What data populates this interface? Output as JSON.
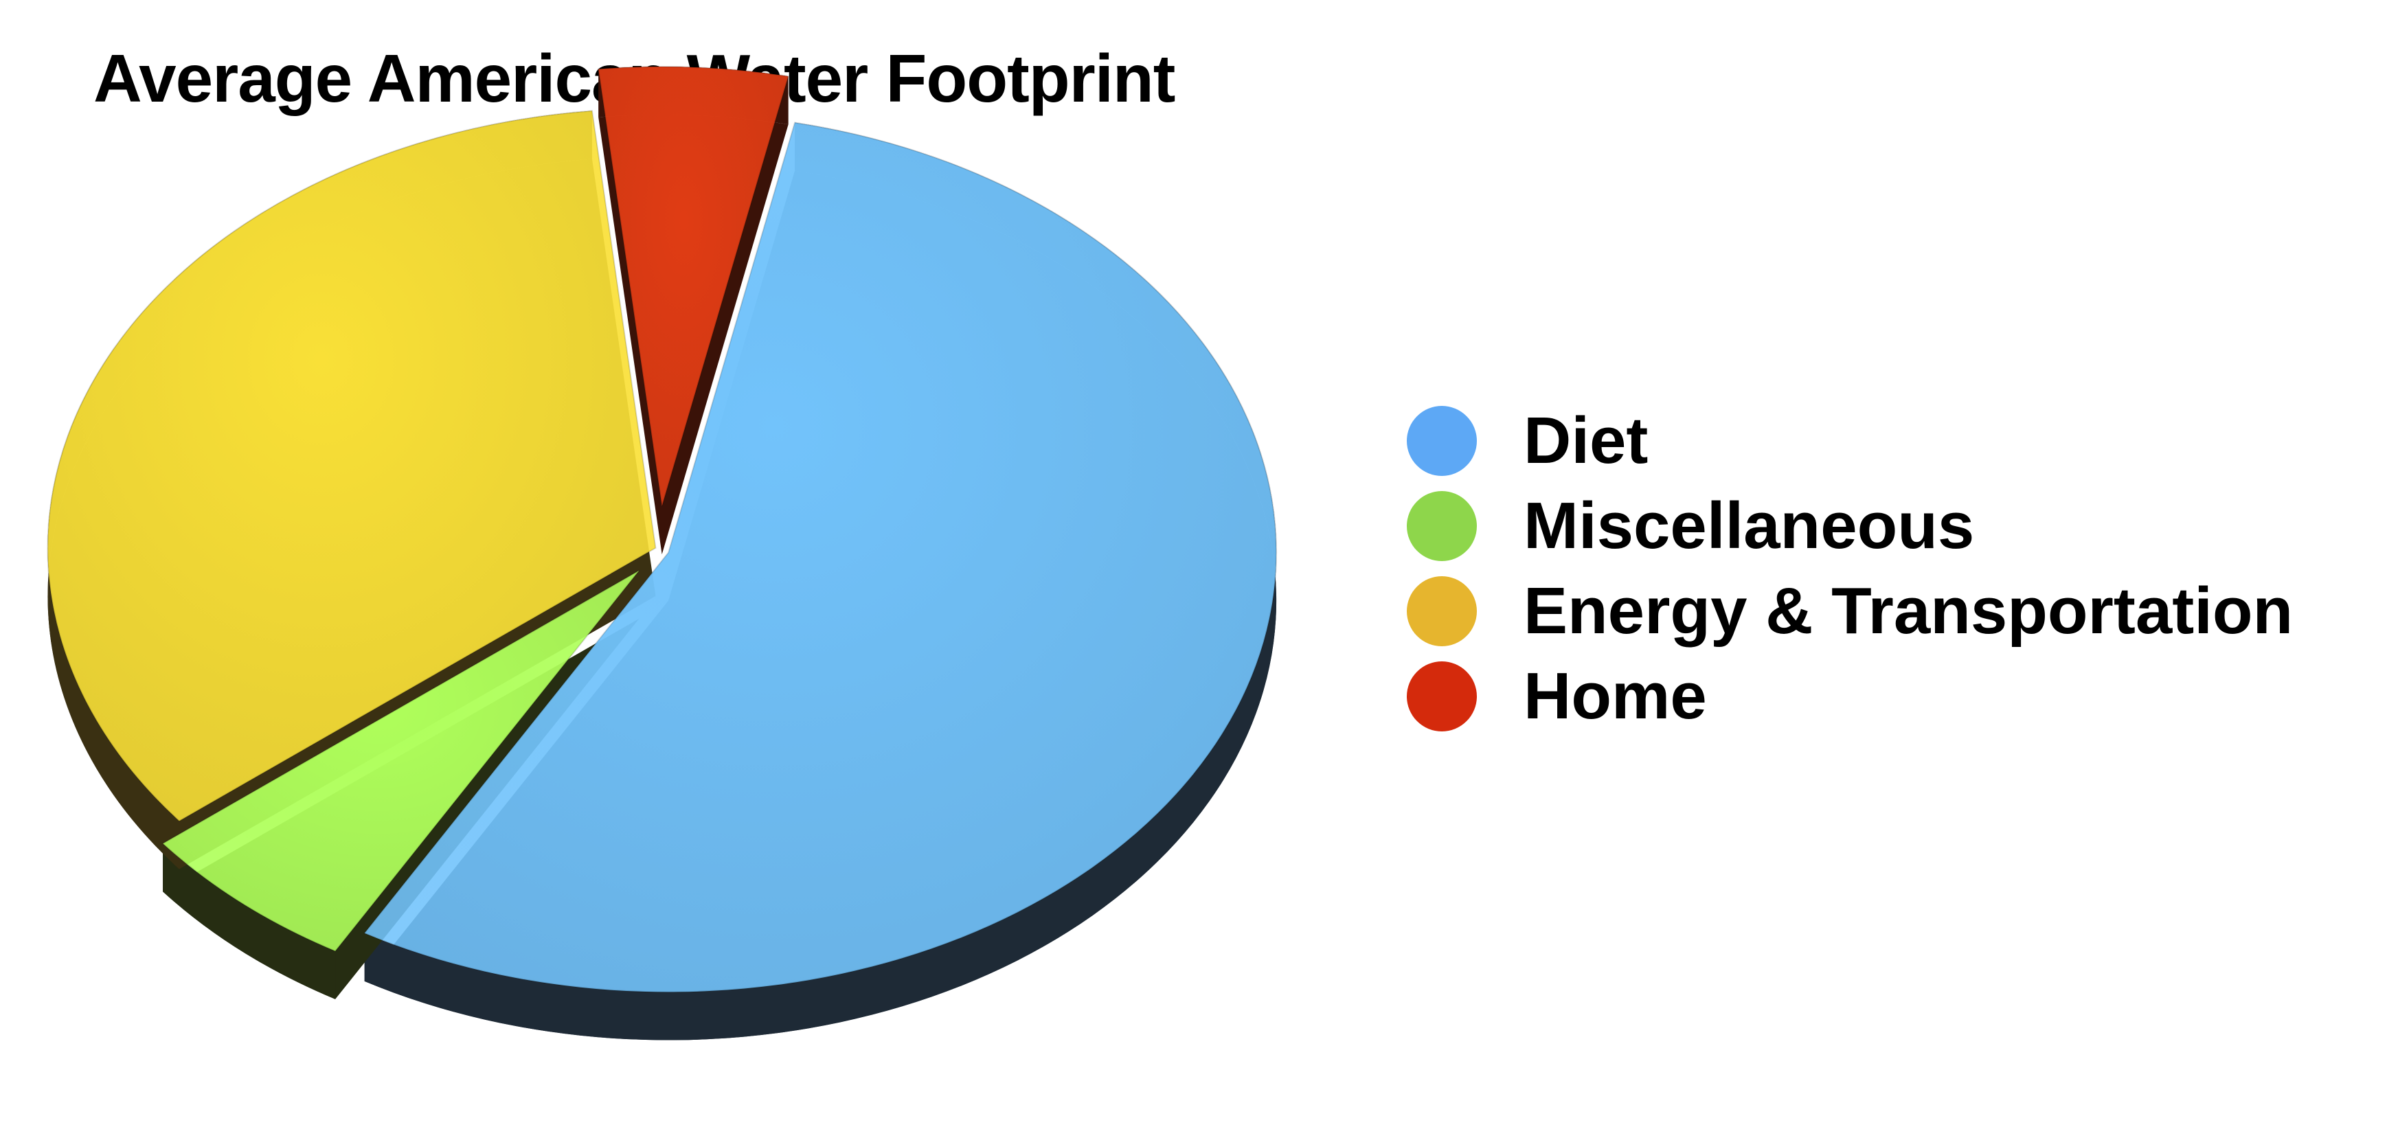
{
  "chart_data": {
    "type": "pie",
    "title": "Average American Water Footprint",
    "legend_position": "right",
    "style": "3d-exploded",
    "slices": [
      {
        "name": "Diet",
        "value": 55,
        "color": "#72c3fb",
        "legend_color": "#5da8f5",
        "side_color": "#1e2a36"
      },
      {
        "name": "Miscellaneous",
        "value": 6,
        "color": "#afff5b",
        "legend_color": "#8ed64b",
        "side_color": "#262d12"
      },
      {
        "name": "Energy & Transportation",
        "value": 34,
        "color": "#f9e037",
        "legend_color": "#e6b52e",
        "side_color": "#3a3012"
      },
      {
        "name": "Home",
        "value": 5,
        "color": "#e03c14",
        "legend_color": "#d42a0c",
        "side_color": "#3a1208"
      }
    ]
  }
}
